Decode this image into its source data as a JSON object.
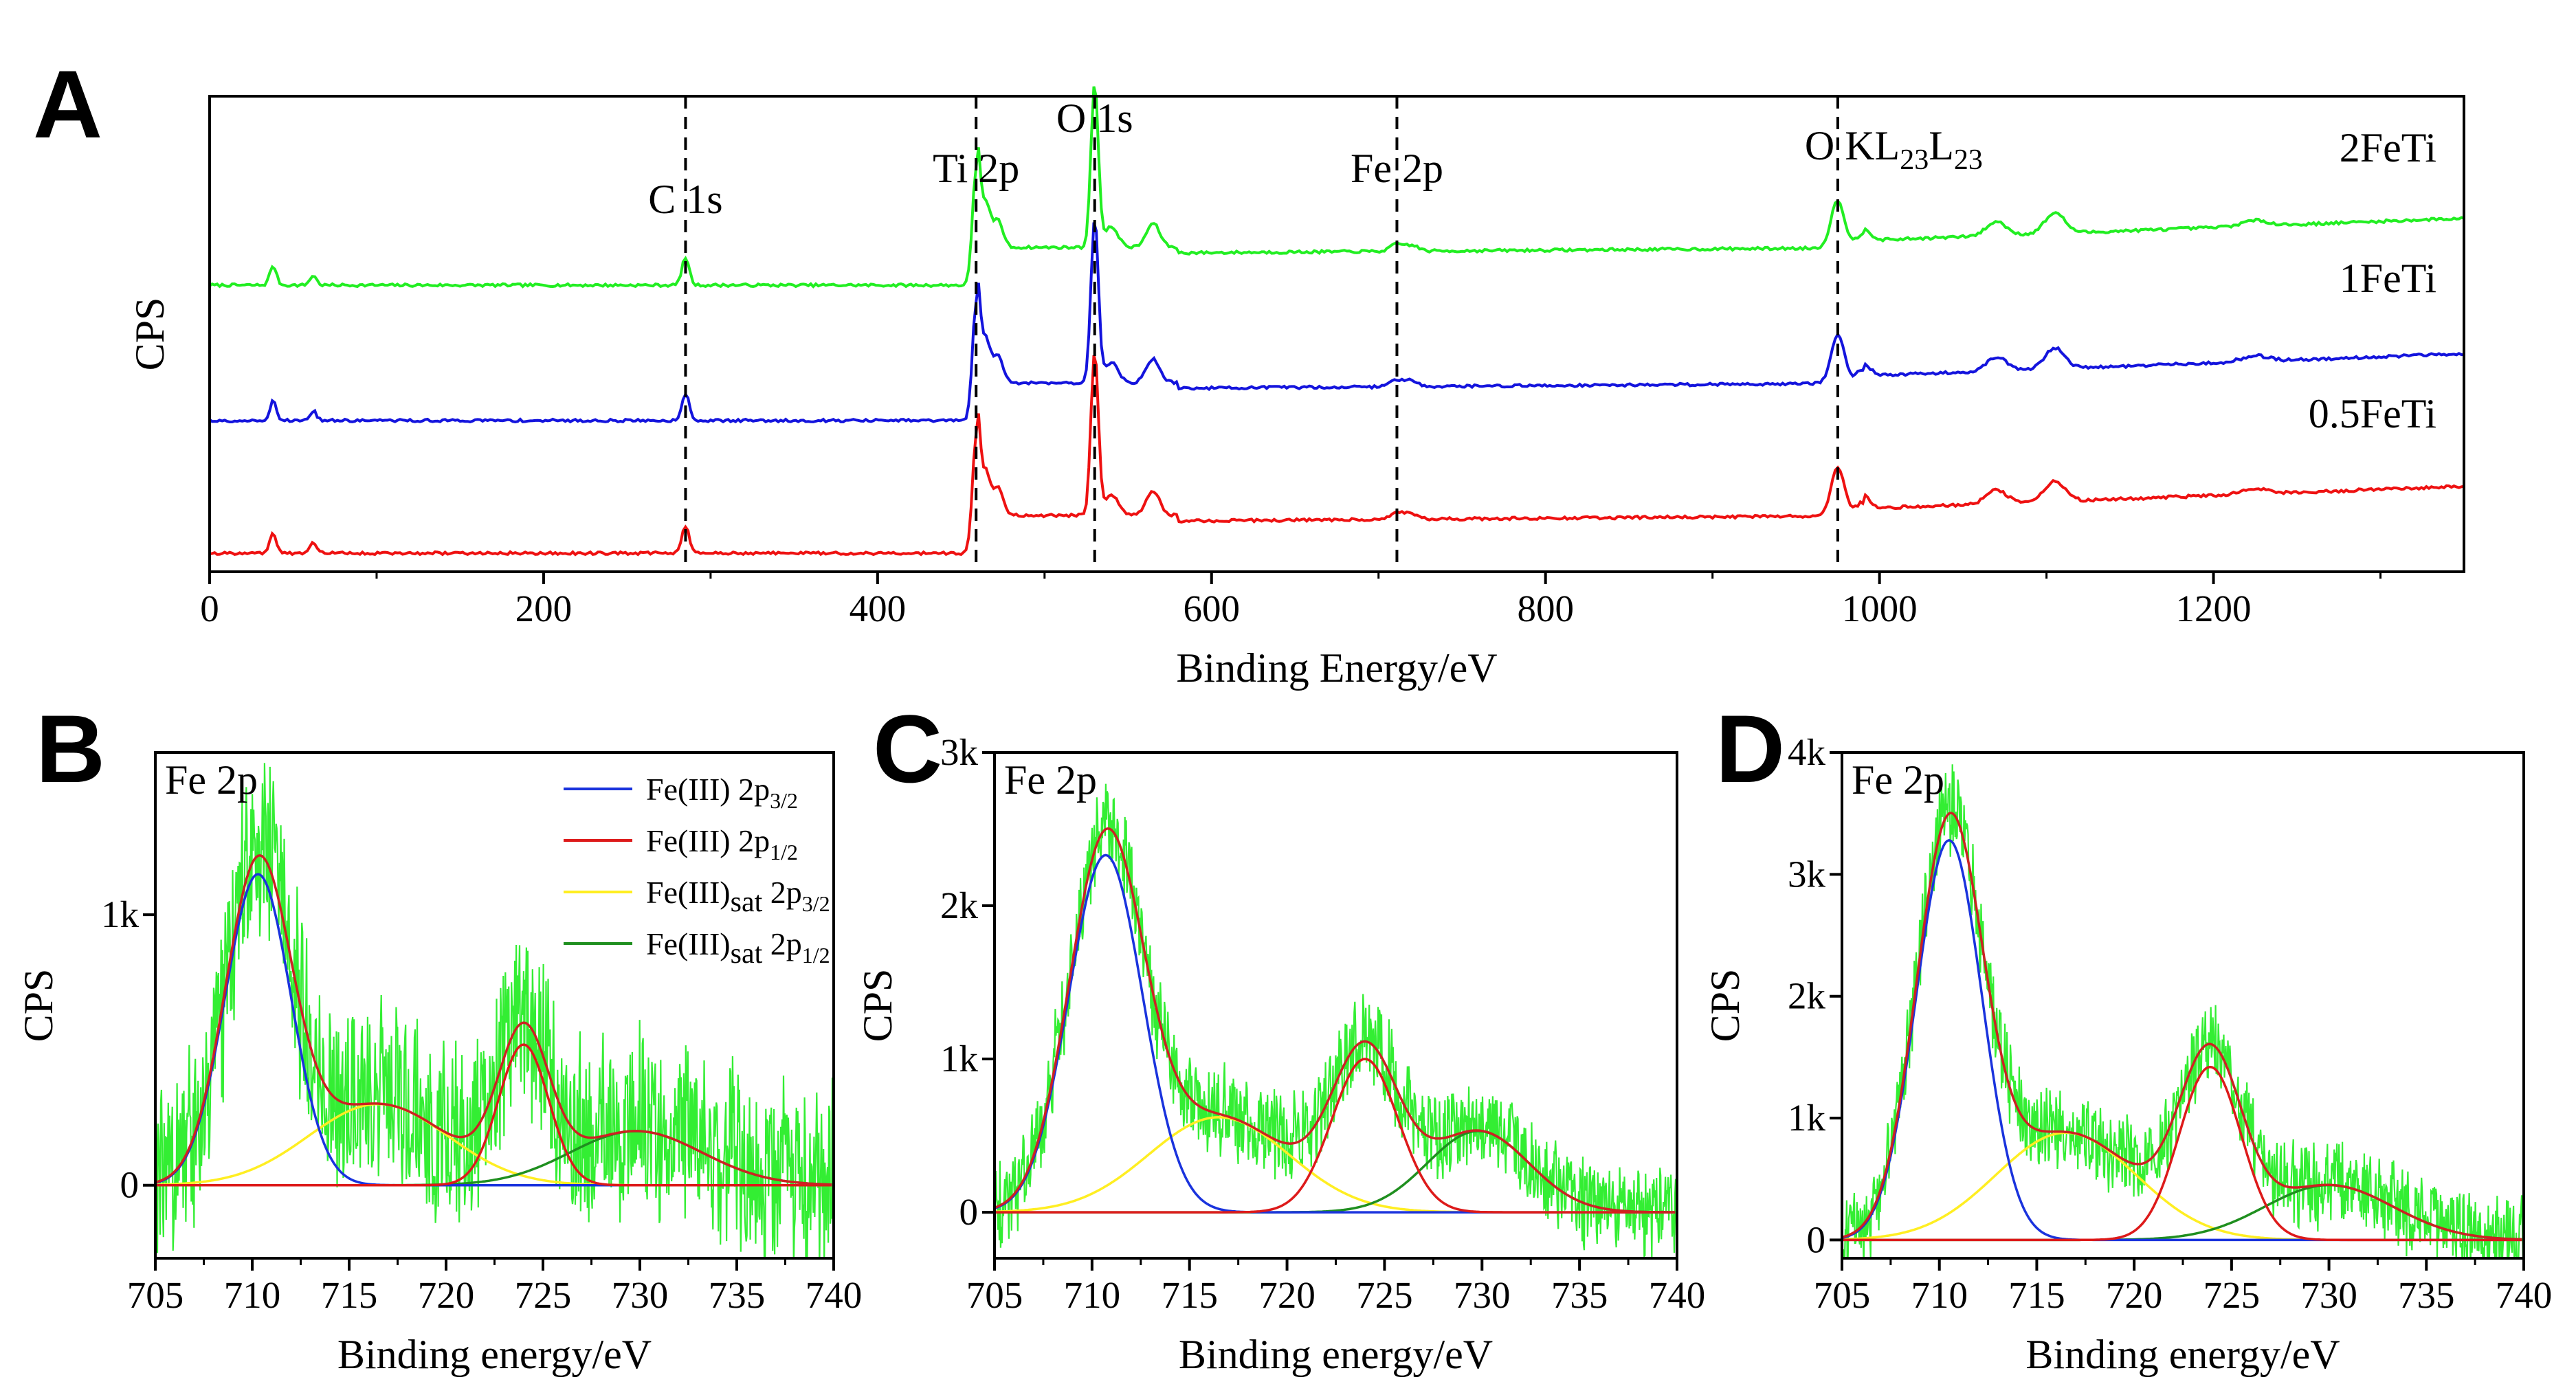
{
  "chart_data": [
    {
      "id": "A",
      "type": "line",
      "panel_label": "A",
      "xlabel": "Binding Energy/eV",
      "ylabel": "CPS",
      "xlim": [
        0,
        1350
      ],
      "xticks": [
        0,
        200,
        400,
        600,
        800,
        1000,
        1200
      ],
      "xtick_labels": [
        "0",
        "200",
        "400",
        "600",
        "800",
        "1000",
        "1200"
      ],
      "show_y_ticks": false,
      "series": [
        {
          "name": "2FeTi",
          "color": "#22ee22",
          "offset": 1.45
        },
        {
          "name": "1FeTi",
          "color": "#1414dd",
          "offset": 0.72
        },
        {
          "name": "0.5FeTi",
          "color": "#ee1111",
          "offset": 0.0
        }
      ],
      "peak_markers": [
        {
          "label": "C 1s",
          "x": 285
        },
        {
          "label": "Ti 2p",
          "x": 459
        },
        {
          "label": "O 1s",
          "x": 530
        },
        {
          "label": "Fe 2p",
          "x": 711
        },
        {
          "label_main": "O KL",
          "sub1": "23",
          "mid": "L",
          "sub2": "23",
          "x": 975
        }
      ]
    },
    {
      "id": "B",
      "type": "line",
      "panel_label": "B",
      "annotation": "Fe 2p",
      "xlabel": "Binding energy/eV",
      "ylabel": "CPS",
      "xlim": [
        705,
        740
      ],
      "ylim": [
        -0.27,
        1.6
      ],
      "xticks": [
        705,
        710,
        715,
        720,
        725,
        730,
        735,
        740
      ],
      "xtick_labels": [
        "705",
        "710",
        "715",
        "720",
        "725",
        "730",
        "735",
        "740"
      ],
      "yticks": [
        0,
        1
      ],
      "ytick_labels": [
        "0",
        "1k"
      ],
      "noise": 0.4,
      "components": [
        {
          "name": "blue",
          "center": 710.3,
          "amp": 1.15,
          "width": 1.7,
          "color": "#1a33dd"
        },
        {
          "name": "red",
          "center": 724.0,
          "amp": 0.52,
          "width": 1.3,
          "color": "#dd1a1a"
        },
        {
          "name": "yellow",
          "center": 716.5,
          "amp": 0.3,
          "width": 3.6,
          "color": "#ffee22"
        },
        {
          "name": "green",
          "center": 729.8,
          "amp": 0.2,
          "width": 3.4,
          "color": "#1f8f1f"
        }
      ],
      "legend": [
        {
          "color": "#1a33dd",
          "base": "Fe(III) 2p",
          "sub": "3/2"
        },
        {
          "color": "#dd1a1a",
          "base": "Fe(III) 2p",
          "sub": "1/2"
        },
        {
          "color": "#ffee22",
          "base": "Fe(III)",
          "sub_mid": "sat",
          "tail": " 2p",
          "sub": "3/2"
        },
        {
          "color": "#1f8f1f",
          "base": "Fe(III)",
          "sub_mid": "sat",
          "tail": " 2p",
          "sub": "1/2"
        }
      ]
    },
    {
      "id": "C",
      "type": "line",
      "panel_label": "C",
      "annotation": "Fe 2p",
      "xlabel": "Binding energy/eV",
      "ylabel": "CPS",
      "xlim": [
        705,
        740
      ],
      "ylim": [
        -0.3,
        3.0
      ],
      "xticks": [
        705,
        710,
        715,
        720,
        725,
        730,
        735,
        740
      ],
      "xtick_labels": [
        "705",
        "710",
        "715",
        "720",
        "725",
        "730",
        "735",
        "740"
      ],
      "yticks": [
        0,
        1,
        2,
        3
      ],
      "ytick_labels": [
        "0",
        "1k",
        "2k",
        "3k"
      ],
      "noise": 0.35,
      "components": [
        {
          "name": "blue",
          "center": 710.7,
          "amp": 2.33,
          "width": 1.9,
          "color": "#1a33dd"
        },
        {
          "name": "red",
          "center": 724.0,
          "amp": 1.0,
          "width": 1.7,
          "color": "#dd1a1a"
        },
        {
          "name": "yellow",
          "center": 716.5,
          "amp": 0.62,
          "width": 3.6,
          "color": "#ffee22"
        },
        {
          "name": "green",
          "center": 729.8,
          "amp": 0.53,
          "width": 2.6,
          "color": "#1f8f1f"
        }
      ]
    },
    {
      "id": "D",
      "type": "line",
      "panel_label": "D",
      "annotation": "Fe 2p",
      "xlabel": "Binding energy/eV",
      "ylabel": "CPS",
      "xlim": [
        705,
        740
      ],
      "ylim": [
        -0.15,
        4.0
      ],
      "xticks": [
        705,
        710,
        715,
        720,
        725,
        730,
        735,
        740
      ],
      "xtick_labels": [
        "705",
        "710",
        "715",
        "720",
        "725",
        "730",
        "735",
        "740"
      ],
      "yticks": [
        0,
        1,
        2,
        3,
        4
      ],
      "ytick_labels": [
        "0",
        "1k",
        "2k",
        "3k",
        "4k"
      ],
      "noise": 0.4,
      "components": [
        {
          "name": "blue",
          "center": 710.5,
          "amp": 3.28,
          "width": 1.7,
          "color": "#1a33dd"
        },
        {
          "name": "red",
          "center": 723.9,
          "amp": 1.42,
          "width": 1.6,
          "color": "#dd1a1a"
        },
        {
          "name": "yellow",
          "center": 716.5,
          "amp": 0.88,
          "width": 3.6,
          "color": "#ffee22"
        },
        {
          "name": "green",
          "center": 730.0,
          "amp": 0.45,
          "width": 3.3,
          "color": "#1f8f1f"
        }
      ]
    }
  ]
}
